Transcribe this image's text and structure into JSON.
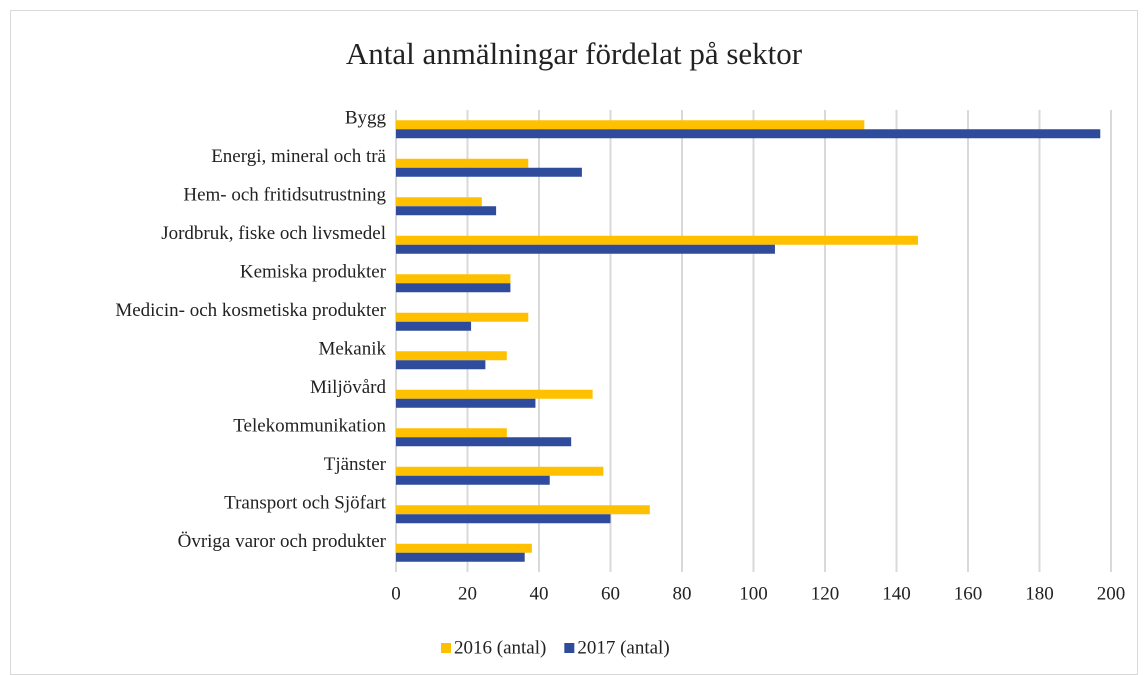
{
  "chart_data": {
    "type": "hbar",
    "title": "Antal anmälningar fördelat på sektor",
    "categories": [
      "Bygg",
      "Energi, mineral och trä",
      "Hem- och fritidsutrustning",
      "Jordbruk, fiske och livsmedel",
      "Kemiska produkter",
      "Medicin- och kosmetiska produkter",
      "Mekanik",
      "Miljövård",
      "Telekommunikation",
      "Tjänster",
      "Transport och Sjöfart",
      "Övriga varor och produkter"
    ],
    "series": [
      {
        "name": "2016 (antal)",
        "color": "#ffc000",
        "values": [
          131,
          37,
          24,
          146,
          32,
          37,
          31,
          55,
          31,
          58,
          71,
          38
        ]
      },
      {
        "name": "2017 (antal)",
        "color": "#2f4b9b",
        "values": [
          197,
          52,
          28,
          106,
          32,
          21,
          25,
          39,
          49,
          43,
          60,
          36
        ]
      }
    ],
    "xlim": [
      0,
      200
    ],
    "xticks": [
      0,
      20,
      40,
      60,
      80,
      100,
      120,
      140,
      160,
      180,
      200
    ],
    "grid": true,
    "legend": "bottom"
  }
}
